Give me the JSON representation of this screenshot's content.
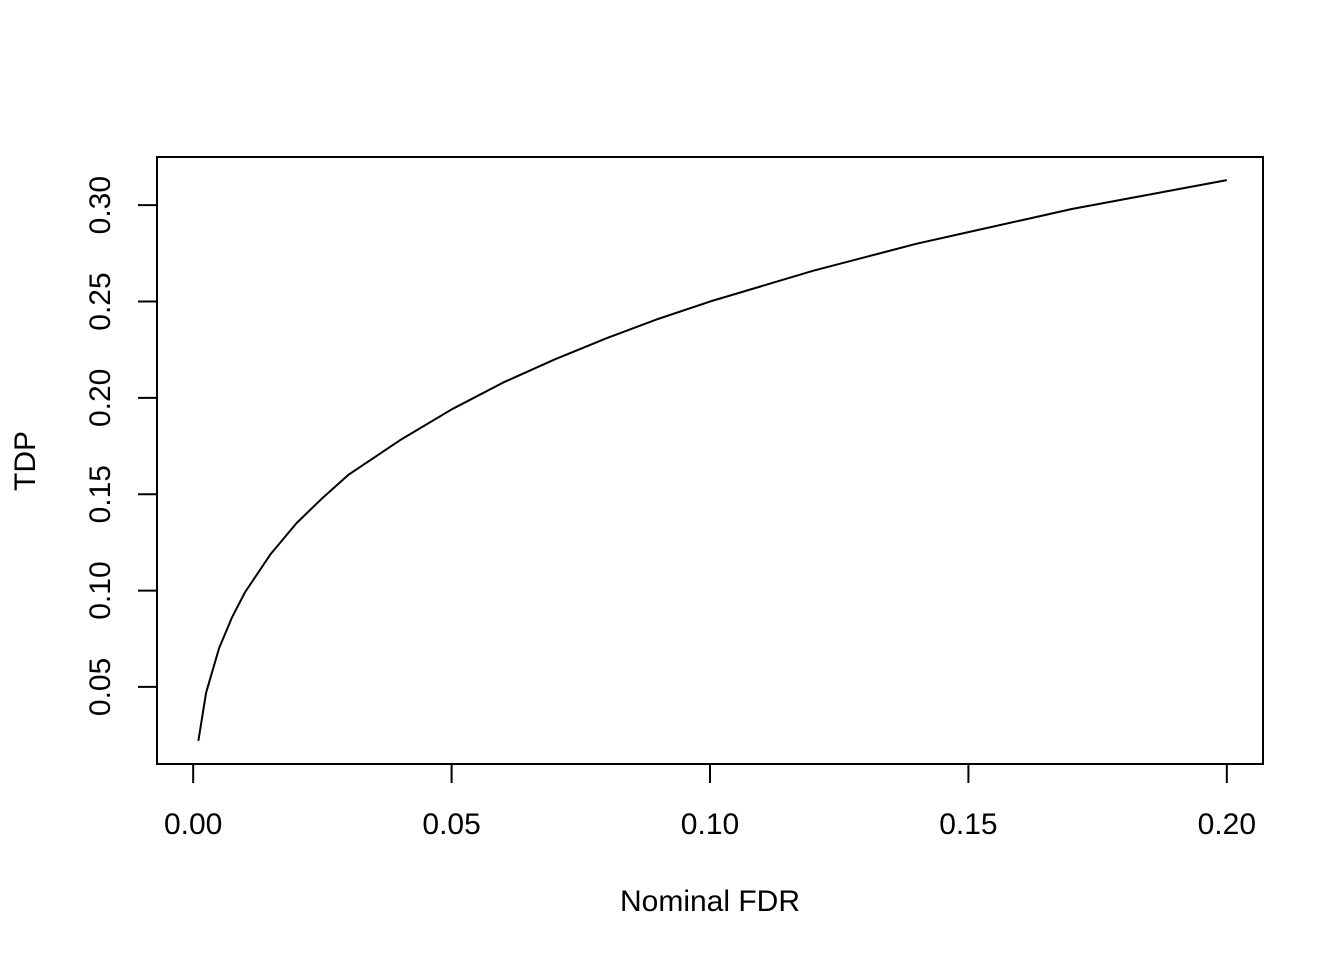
{
  "chart_data": {
    "type": "line",
    "title": "",
    "xlabel": "Nominal FDR",
    "ylabel": "TDP",
    "xlim": [
      -0.007,
      0.207
    ],
    "ylim": [
      0.01,
      0.325
    ],
    "x_ticks": [
      0.0,
      0.05,
      0.1,
      0.15,
      0.2
    ],
    "x_tick_labels": [
      "0.00",
      "0.05",
      "0.10",
      "0.15",
      "0.20"
    ],
    "y_ticks": [
      0.05,
      0.1,
      0.15,
      0.2,
      0.25,
      0.3
    ],
    "y_tick_labels": [
      "0.05",
      "0.10",
      "0.15",
      "0.20",
      "0.25",
      "0.30"
    ],
    "grid": false,
    "legend": "none",
    "series": [
      {
        "x": [
          0.001,
          0.0025,
          0.005,
          0.0075,
          0.01,
          0.015,
          0.02,
          0.025,
          0.03,
          0.04,
          0.05,
          0.06,
          0.07,
          0.08,
          0.09,
          0.1,
          0.11,
          0.12,
          0.13,
          0.14,
          0.15,
          0.16,
          0.17,
          0.18,
          0.19,
          0.2
        ],
        "y": [
          0.022,
          0.047,
          0.07,
          0.086,
          0.099,
          0.119,
          0.135,
          0.148,
          0.16,
          0.178,
          0.194,
          0.208,
          0.22,
          0.231,
          0.241,
          0.25,
          0.258,
          0.266,
          0.273,
          0.28,
          0.286,
          0.292,
          0.298,
          0.303,
          0.308,
          0.313
        ],
        "color": "#000000"
      }
    ]
  }
}
